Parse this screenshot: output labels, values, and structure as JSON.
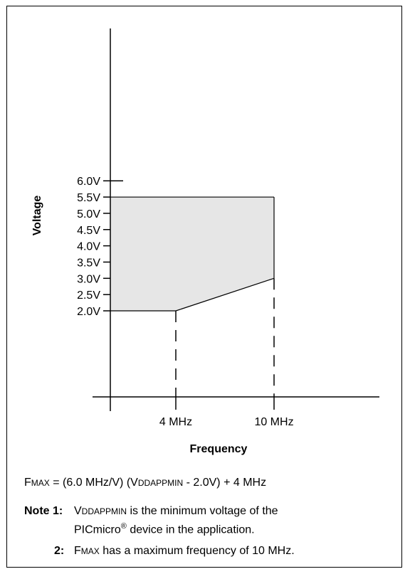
{
  "chart_data": {
    "type": "area",
    "title": "",
    "xlabel": "Frequency",
    "ylabel": "Voltage",
    "x_ticks": [
      {
        "value": 4,
        "label": "4 MHz"
      },
      {
        "value": 10,
        "label": "10 MHz"
      }
    ],
    "y_ticks": [
      {
        "value": 2.0,
        "label": "2.0V"
      },
      {
        "value": 2.5,
        "label": "2.5V"
      },
      {
        "value": 3.0,
        "label": "3.0V"
      },
      {
        "value": 3.5,
        "label": "3.5V"
      },
      {
        "value": 4.0,
        "label": "4.0V"
      },
      {
        "value": 4.5,
        "label": "4.5V"
      },
      {
        "value": 5.0,
        "label": "5.0V"
      },
      {
        "value": 5.5,
        "label": "5.5V"
      },
      {
        "value": 6.0,
        "label": "6.0V"
      }
    ],
    "region": [
      [
        0,
        2.0
      ],
      [
        4,
        2.0
      ],
      [
        10,
        3.0
      ],
      [
        10,
        5.5
      ],
      [
        0,
        5.5
      ]
    ],
    "reference_lines": [
      {
        "x": 4,
        "from_y": 2.0,
        "style": "dashed"
      },
      {
        "x": 10,
        "from_y": 3.0,
        "style": "dashed"
      }
    ],
    "fill_color": "#e6e6e6",
    "line_color": "#000000"
  },
  "formula": {
    "fmax_prefix": "F",
    "fmax_sub": "MAX",
    "eq_part1": " = (6.0 MHz/V) (V",
    "vdd_sub": "DDAPPMIN",
    "eq_part2": " - 2.0V) + 4 MHz"
  },
  "notes": {
    "note1_label": "Note 1:",
    "note1_v": "V",
    "note1_sub": "DDAPPMIN",
    "note1_text": " is the minimum voltage of the",
    "note1_line2": "PICmicro",
    "note1_reg": "®",
    "note1_line2_rest": " device in the application.",
    "note2_label": "2:",
    "note2_f": "F",
    "note2_sub": "MAX",
    "note2_text": " has a maximum frequency of 10 MHz."
  }
}
